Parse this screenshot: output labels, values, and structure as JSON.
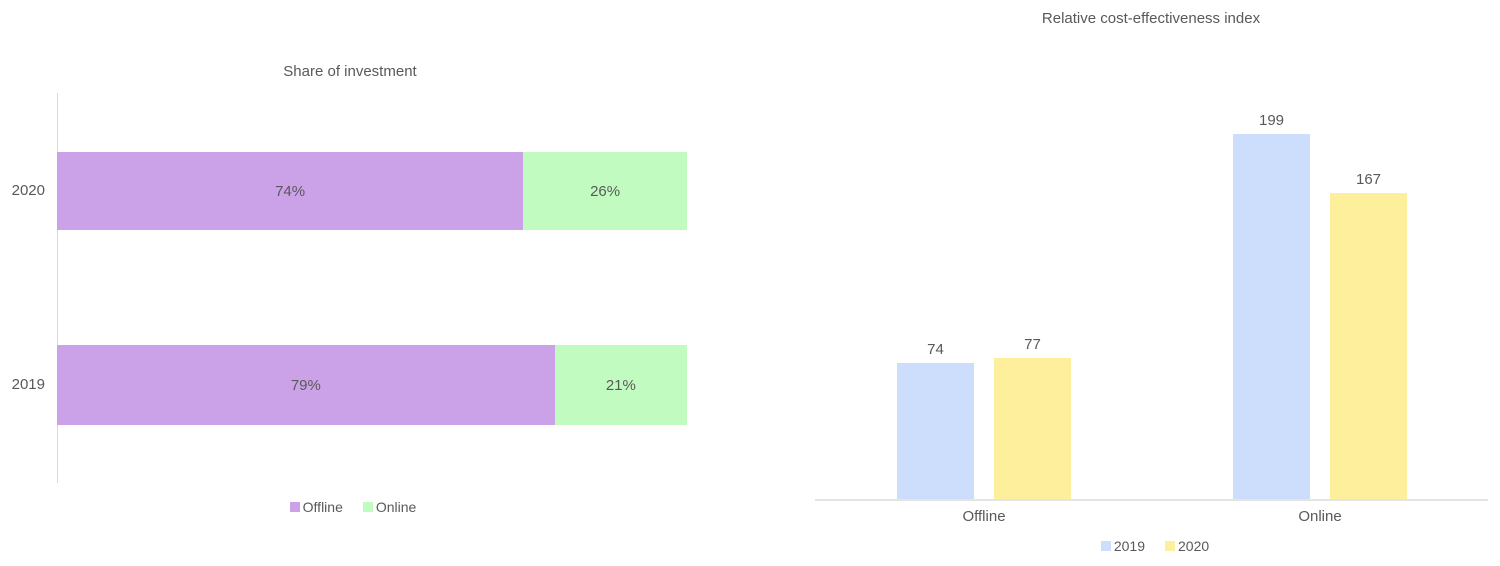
{
  "chart_data": [
    {
      "id": "share-of-investment",
      "type": "bar",
      "orientation": "horizontal-stacked",
      "title": "Share of investment",
      "categories": [
        "2020",
        "2019"
      ],
      "series": [
        {
          "name": "Offline",
          "color": "#CBA2E8",
          "values": [
            74,
            79
          ],
          "labels": [
            "74%",
            "79%"
          ]
        },
        {
          "name": "Online",
          "color": "#C1FBBF",
          "values": [
            26,
            21
          ],
          "labels": [
            "26%",
            "21%"
          ]
        }
      ],
      "value_total": 100,
      "legend": [
        "Offline",
        "Online"
      ],
      "legend_position": "bottom",
      "grid": false,
      "axis": "left-vertical-line-only"
    },
    {
      "id": "relative-cost-effectiveness-index",
      "type": "bar",
      "orientation": "vertical-grouped",
      "title": "Relative cost-effectiveness index",
      "categories": [
        "Offline",
        "Online"
      ],
      "series": [
        {
          "name": "2019",
          "color": "#CCDEFB",
          "values": [
            74,
            199
          ]
        },
        {
          "name": "2020",
          "color": "#FDEF9B",
          "values": [
            77,
            167
          ]
        }
      ],
      "data_labels": [
        [
          "74",
          "199"
        ],
        [
          "77",
          "167"
        ]
      ],
      "ylim": [
        0,
        217
      ],
      "legend": [
        "2019",
        "2020"
      ],
      "legend_position": "bottom",
      "grid": false,
      "axis": "bottom-horizontal-line-only"
    }
  ],
  "colors": {
    "text": "#595959",
    "axis_line": "#D9D9D9",
    "background": "#FFFFFF"
  }
}
